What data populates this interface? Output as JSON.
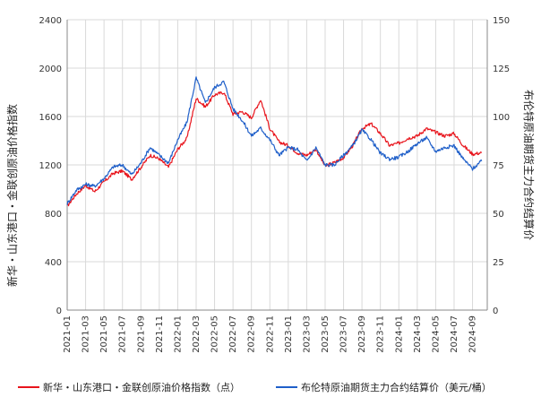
{
  "colors": {
    "series1": "#e8141c",
    "series2": "#1f5fc9",
    "grid": "#d9d9d9",
    "axis": "#888888"
  },
  "chart_data": {
    "type": "line",
    "title": "",
    "xlabel": "",
    "ylabel_left": "新华・山东港口・金联创原油价格指数",
    "ylabel_right": "布伦特原油期货主力合约结算价",
    "x_ticks": [
      "2021-01",
      "2021-03",
      "2021-05",
      "2021-07",
      "2021-09",
      "2021-11",
      "2022-01",
      "2022-03",
      "2022-05",
      "2022-07",
      "2022-09",
      "2022-11",
      "2023-01",
      "2023-03",
      "2023-05",
      "2023-07",
      "2023-09",
      "2023-11",
      "2024-01",
      "2024-03",
      "2024-05",
      "2024-07",
      "2024-09"
    ],
    "y_left_ticks": [
      "0",
      "400",
      "800",
      "1200",
      "1600",
      "2000",
      "2400"
    ],
    "y_right_ticks": [
      "0",
      "25",
      "50",
      "75",
      "100",
      "125",
      "150"
    ],
    "ylim_left": [
      0,
      2400
    ],
    "ylim_right": [
      0,
      150
    ],
    "grid": true,
    "legend_position": "bottom",
    "series": [
      {
        "name": "新华・山东港口・金联创原油价格指数（点）",
        "axis": "left",
        "x": [
          "2021-01",
          "2021-02",
          "2021-03",
          "2021-04",
          "2021-05",
          "2021-06",
          "2021-07",
          "2021-08",
          "2021-09",
          "2021-10",
          "2021-11",
          "2021-12",
          "2022-01",
          "2022-02",
          "2022-03",
          "2022-04",
          "2022-05",
          "2022-06",
          "2022-07",
          "2022-08",
          "2022-09",
          "2022-10",
          "2022-11",
          "2022-12",
          "2023-01",
          "2023-02",
          "2023-03",
          "2023-04",
          "2023-05",
          "2023-06",
          "2023-07",
          "2023-08",
          "2023-09",
          "2023-10",
          "2023-11",
          "2023-12",
          "2024-01",
          "2024-02",
          "2024-03",
          "2024-04",
          "2024-05",
          "2024-06",
          "2024-07",
          "2024-08",
          "2024-09",
          "2024-10"
        ],
        "values": [
          860,
          960,
          1030,
          980,
          1060,
          1130,
          1150,
          1080,
          1180,
          1280,
          1250,
          1180,
          1330,
          1420,
          1750,
          1680,
          1780,
          1800,
          1620,
          1640,
          1590,
          1740,
          1500,
          1390,
          1360,
          1300,
          1280,
          1330,
          1190,
          1220,
          1260,
          1360,
          1500,
          1540,
          1460,
          1360,
          1380,
          1420,
          1440,
          1500,
          1470,
          1440,
          1460,
          1360,
          1290,
          1300
        ]
      },
      {
        "name": "布伦特原油期货主力合约结算价（美元/桶）",
        "axis": "right",
        "x": [
          "2021-01",
          "2021-02",
          "2021-03",
          "2021-04",
          "2021-05",
          "2021-06",
          "2021-07",
          "2021-08",
          "2021-09",
          "2021-10",
          "2021-11",
          "2021-12",
          "2022-01",
          "2022-02",
          "2022-03",
          "2022-04",
          "2022-05",
          "2022-06",
          "2022-07",
          "2022-08",
          "2022-09",
          "2022-10",
          "2022-11",
          "2022-12",
          "2023-01",
          "2023-02",
          "2023-03",
          "2023-04",
          "2023-05",
          "2023-06",
          "2023-07",
          "2023-08",
          "2023-09",
          "2023-10",
          "2023-11",
          "2023-12",
          "2024-01",
          "2024-02",
          "2024-03",
          "2024-04",
          "2024-05",
          "2024-06",
          "2024-07",
          "2024-08",
          "2024-09",
          "2024-10"
        ],
        "values": [
          55,
          62,
          65,
          64,
          68,
          74,
          75,
          70,
          76,
          84,
          80,
          76,
          88,
          97,
          120,
          107,
          115,
          118,
          104,
          98,
          90,
          94,
          88,
          80,
          84,
          83,
          77,
          84,
          75,
          75,
          80,
          85,
          93,
          88,
          81,
          78,
          79,
          82,
          86,
          89,
          82,
          84,
          85,
          78,
          73,
          77
        ]
      }
    ]
  }
}
